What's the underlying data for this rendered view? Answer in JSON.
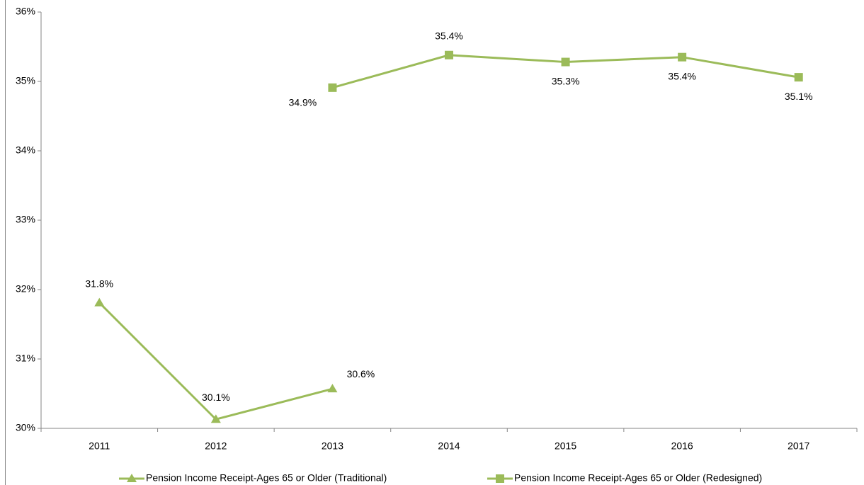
{
  "chart_data": {
    "type": "line",
    "categories": [
      "2011",
      "2012",
      "2013",
      "2014",
      "2015",
      "2016",
      "2017"
    ],
    "series": [
      {
        "name": "Pension Income Receipt-Ages 65 or Older (Traditional)",
        "color": "#9bbb59",
        "marker": "triangle",
        "values": [
          31.81,
          30.13,
          30.57,
          null,
          null,
          null,
          null
        ],
        "value_labels": [
          "31.8%",
          "30.1%",
          "30.6%",
          null,
          null,
          null,
          null
        ]
      },
      {
        "name": "Pension Income Receipt-Ages 65 or Older (Redesigned)",
        "color": "#9bbb59",
        "marker": "square",
        "values": [
          null,
          null,
          34.91,
          35.38,
          35.28,
          35.35,
          35.06
        ],
        "value_labels": [
          null,
          null,
          "34.9%",
          "35.4%",
          "35.3%",
          "35.4%",
          "35.1%"
        ]
      }
    ],
    "ylim": [
      30,
      36
    ],
    "yticks": [
      {
        "value": 30,
        "label": "30%"
      },
      {
        "value": 31,
        "label": "31%"
      },
      {
        "value": 32,
        "label": "32%"
      },
      {
        "value": 33,
        "label": "33%"
      },
      {
        "value": 34,
        "label": "34%"
      },
      {
        "value": 35,
        "label": "35%"
      },
      {
        "value": 36,
        "label": "36%"
      }
    ],
    "grid": false,
    "legend": "bottom"
  }
}
